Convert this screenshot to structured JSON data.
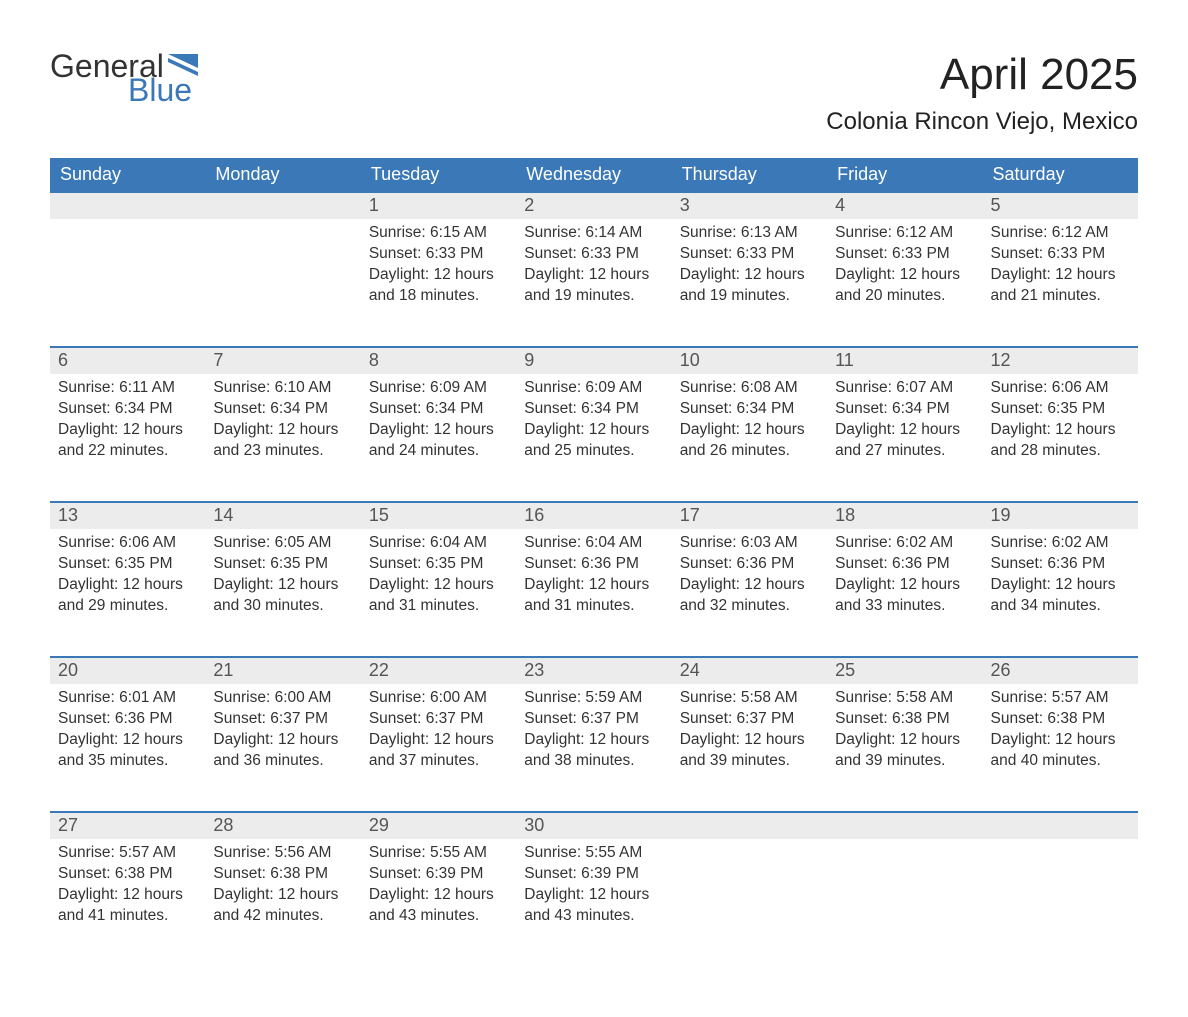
{
  "brand": {
    "word1": "General",
    "word2": "Blue",
    "accent_color": "#3b78b8"
  },
  "title": "April 2025",
  "location": "Colonia Rincon Viejo, Mexico",
  "colors": {
    "header_bg": "#3b78b8",
    "header_text": "#ffffff",
    "daynum_bg": "#ececec",
    "row_border": "#3b78b8",
    "body_text": "#333333"
  },
  "weekdays": [
    "Sunday",
    "Monday",
    "Tuesday",
    "Wednesday",
    "Thursday",
    "Friday",
    "Saturday"
  ],
  "weeks": [
    [
      {
        "day": "",
        "sunrise": "",
        "sunset": "",
        "daylight": ""
      },
      {
        "day": "",
        "sunrise": "",
        "sunset": "",
        "daylight": ""
      },
      {
        "day": "1",
        "sunrise": "Sunrise: 6:15 AM",
        "sunset": "Sunset: 6:33 PM",
        "daylight": "Daylight: 12 hours and 18 minutes."
      },
      {
        "day": "2",
        "sunrise": "Sunrise: 6:14 AM",
        "sunset": "Sunset: 6:33 PM",
        "daylight": "Daylight: 12 hours and 19 minutes."
      },
      {
        "day": "3",
        "sunrise": "Sunrise: 6:13 AM",
        "sunset": "Sunset: 6:33 PM",
        "daylight": "Daylight: 12 hours and 19 minutes."
      },
      {
        "day": "4",
        "sunrise": "Sunrise: 6:12 AM",
        "sunset": "Sunset: 6:33 PM",
        "daylight": "Daylight: 12 hours and 20 minutes."
      },
      {
        "day": "5",
        "sunrise": "Sunrise: 6:12 AM",
        "sunset": "Sunset: 6:33 PM",
        "daylight": "Daylight: 12 hours and 21 minutes."
      }
    ],
    [
      {
        "day": "6",
        "sunrise": "Sunrise: 6:11 AM",
        "sunset": "Sunset: 6:34 PM",
        "daylight": "Daylight: 12 hours and 22 minutes."
      },
      {
        "day": "7",
        "sunrise": "Sunrise: 6:10 AM",
        "sunset": "Sunset: 6:34 PM",
        "daylight": "Daylight: 12 hours and 23 minutes."
      },
      {
        "day": "8",
        "sunrise": "Sunrise: 6:09 AM",
        "sunset": "Sunset: 6:34 PM",
        "daylight": "Daylight: 12 hours and 24 minutes."
      },
      {
        "day": "9",
        "sunrise": "Sunrise: 6:09 AM",
        "sunset": "Sunset: 6:34 PM",
        "daylight": "Daylight: 12 hours and 25 minutes."
      },
      {
        "day": "10",
        "sunrise": "Sunrise: 6:08 AM",
        "sunset": "Sunset: 6:34 PM",
        "daylight": "Daylight: 12 hours and 26 minutes."
      },
      {
        "day": "11",
        "sunrise": "Sunrise: 6:07 AM",
        "sunset": "Sunset: 6:34 PM",
        "daylight": "Daylight: 12 hours and 27 minutes."
      },
      {
        "day": "12",
        "sunrise": "Sunrise: 6:06 AM",
        "sunset": "Sunset: 6:35 PM",
        "daylight": "Daylight: 12 hours and 28 minutes."
      }
    ],
    [
      {
        "day": "13",
        "sunrise": "Sunrise: 6:06 AM",
        "sunset": "Sunset: 6:35 PM",
        "daylight": "Daylight: 12 hours and 29 minutes."
      },
      {
        "day": "14",
        "sunrise": "Sunrise: 6:05 AM",
        "sunset": "Sunset: 6:35 PM",
        "daylight": "Daylight: 12 hours and 30 minutes."
      },
      {
        "day": "15",
        "sunrise": "Sunrise: 6:04 AM",
        "sunset": "Sunset: 6:35 PM",
        "daylight": "Daylight: 12 hours and 31 minutes."
      },
      {
        "day": "16",
        "sunrise": "Sunrise: 6:04 AM",
        "sunset": "Sunset: 6:36 PM",
        "daylight": "Daylight: 12 hours and 31 minutes."
      },
      {
        "day": "17",
        "sunrise": "Sunrise: 6:03 AM",
        "sunset": "Sunset: 6:36 PM",
        "daylight": "Daylight: 12 hours and 32 minutes."
      },
      {
        "day": "18",
        "sunrise": "Sunrise: 6:02 AM",
        "sunset": "Sunset: 6:36 PM",
        "daylight": "Daylight: 12 hours and 33 minutes."
      },
      {
        "day": "19",
        "sunrise": "Sunrise: 6:02 AM",
        "sunset": "Sunset: 6:36 PM",
        "daylight": "Daylight: 12 hours and 34 minutes."
      }
    ],
    [
      {
        "day": "20",
        "sunrise": "Sunrise: 6:01 AM",
        "sunset": "Sunset: 6:36 PM",
        "daylight": "Daylight: 12 hours and 35 minutes."
      },
      {
        "day": "21",
        "sunrise": "Sunrise: 6:00 AM",
        "sunset": "Sunset: 6:37 PM",
        "daylight": "Daylight: 12 hours and 36 minutes."
      },
      {
        "day": "22",
        "sunrise": "Sunrise: 6:00 AM",
        "sunset": "Sunset: 6:37 PM",
        "daylight": "Daylight: 12 hours and 37 minutes."
      },
      {
        "day": "23",
        "sunrise": "Sunrise: 5:59 AM",
        "sunset": "Sunset: 6:37 PM",
        "daylight": "Daylight: 12 hours and 38 minutes."
      },
      {
        "day": "24",
        "sunrise": "Sunrise: 5:58 AM",
        "sunset": "Sunset: 6:37 PM",
        "daylight": "Daylight: 12 hours and 39 minutes."
      },
      {
        "day": "25",
        "sunrise": "Sunrise: 5:58 AM",
        "sunset": "Sunset: 6:38 PM",
        "daylight": "Daylight: 12 hours and 39 minutes."
      },
      {
        "day": "26",
        "sunrise": "Sunrise: 5:57 AM",
        "sunset": "Sunset: 6:38 PM",
        "daylight": "Daylight: 12 hours and 40 minutes."
      }
    ],
    [
      {
        "day": "27",
        "sunrise": "Sunrise: 5:57 AM",
        "sunset": "Sunset: 6:38 PM",
        "daylight": "Daylight: 12 hours and 41 minutes."
      },
      {
        "day": "28",
        "sunrise": "Sunrise: 5:56 AM",
        "sunset": "Sunset: 6:38 PM",
        "daylight": "Daylight: 12 hours and 42 minutes."
      },
      {
        "day": "29",
        "sunrise": "Sunrise: 5:55 AM",
        "sunset": "Sunset: 6:39 PM",
        "daylight": "Daylight: 12 hours and 43 minutes."
      },
      {
        "day": "30",
        "sunrise": "Sunrise: 5:55 AM",
        "sunset": "Sunset: 6:39 PM",
        "daylight": "Daylight: 12 hours and 43 minutes."
      },
      {
        "day": "",
        "sunrise": "",
        "sunset": "",
        "daylight": ""
      },
      {
        "day": "",
        "sunrise": "",
        "sunset": "",
        "daylight": ""
      },
      {
        "day": "",
        "sunrise": "",
        "sunset": "",
        "daylight": ""
      }
    ]
  ]
}
